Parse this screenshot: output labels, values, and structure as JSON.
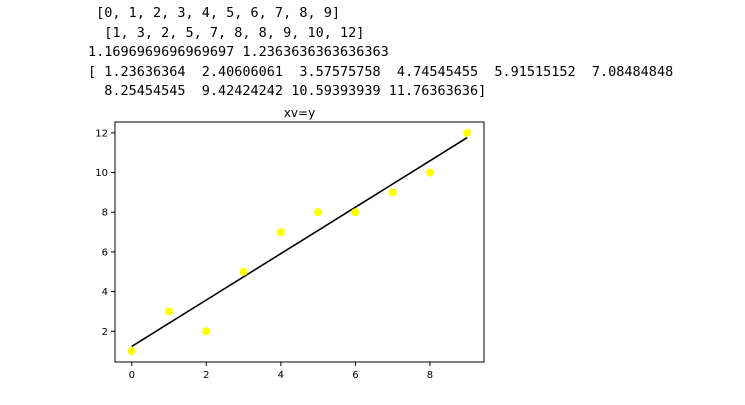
{
  "output_lines": [
    " [0, 1, 2, 3, 4, 5, 6, 7, 8, 9]",
    "  [1, 3, 2, 5, 7, 8, 8, 9, 10, 12]",
    "1.1696969696969697 1.2363636363636363",
    "[ 1.23636364  2.40606061  3.57575758  4.74545455  5.91515152  7.08484848",
    "  8.25454545  9.42424242 10.59393939 11.76363636]"
  ],
  "chart_data": {
    "type": "scatter",
    "title": "xv=y",
    "xlabel": "",
    "ylabel": "",
    "xlim": [
      -0.45,
      9.45
    ],
    "ylim": [
      0.45,
      12.55
    ],
    "xticks": [
      0,
      2,
      4,
      6,
      8
    ],
    "yticks": [
      2,
      4,
      6,
      8,
      10,
      12
    ],
    "grid": false,
    "series": [
      {
        "kind": "scatter",
        "color": "#ffff00",
        "x": [
          0,
          1,
          2,
          3,
          4,
          5,
          6,
          7,
          8,
          9
        ],
        "y": [
          1,
          3,
          2,
          5,
          7,
          8,
          8,
          9,
          10,
          12
        ]
      },
      {
        "kind": "line",
        "color": "#000000",
        "x": [
          0,
          1,
          2,
          3,
          4,
          5,
          6,
          7,
          8,
          9
        ],
        "y": [
          1.23636364,
          2.40606061,
          3.57575758,
          4.74545455,
          5.91515152,
          7.08484848,
          8.25454545,
          9.42424242,
          10.59393939,
          11.76363636
        ]
      }
    ]
  }
}
